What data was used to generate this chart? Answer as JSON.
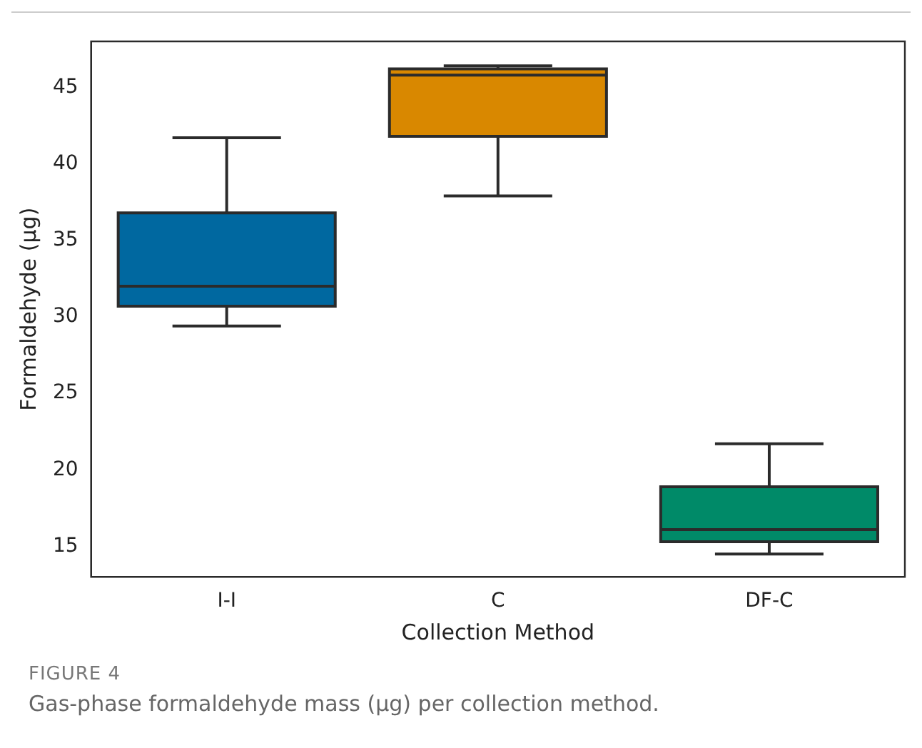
{
  "chart_data": {
    "type": "box",
    "xlabel": "Collection Method",
    "ylabel": "Formaldehyde (µg)",
    "categories": [
      "I-I",
      "C",
      "DF-C"
    ],
    "colors": [
      "#0068a0",
      "#d98800",
      "#008a68"
    ],
    "boxes": [
      {
        "low": 29.4,
        "q1": 30.7,
        "median": 32.0,
        "q3": 36.8,
        "high": 41.7
      },
      {
        "low": 37.9,
        "q1": 41.8,
        "median": 45.8,
        "q3": 46.2,
        "high": 46.4
      },
      {
        "low": 14.5,
        "q1": 15.3,
        "median": 16.1,
        "q3": 18.9,
        "high": 21.7
      }
    ],
    "ylim": [
      13,
      48
    ],
    "yticks": [
      15,
      20,
      25,
      30,
      35,
      40,
      45
    ],
    "annotations": [
      "FIGURE 4",
      "Gas-phase formaldehyde mass (µg) per collection method."
    ]
  }
}
